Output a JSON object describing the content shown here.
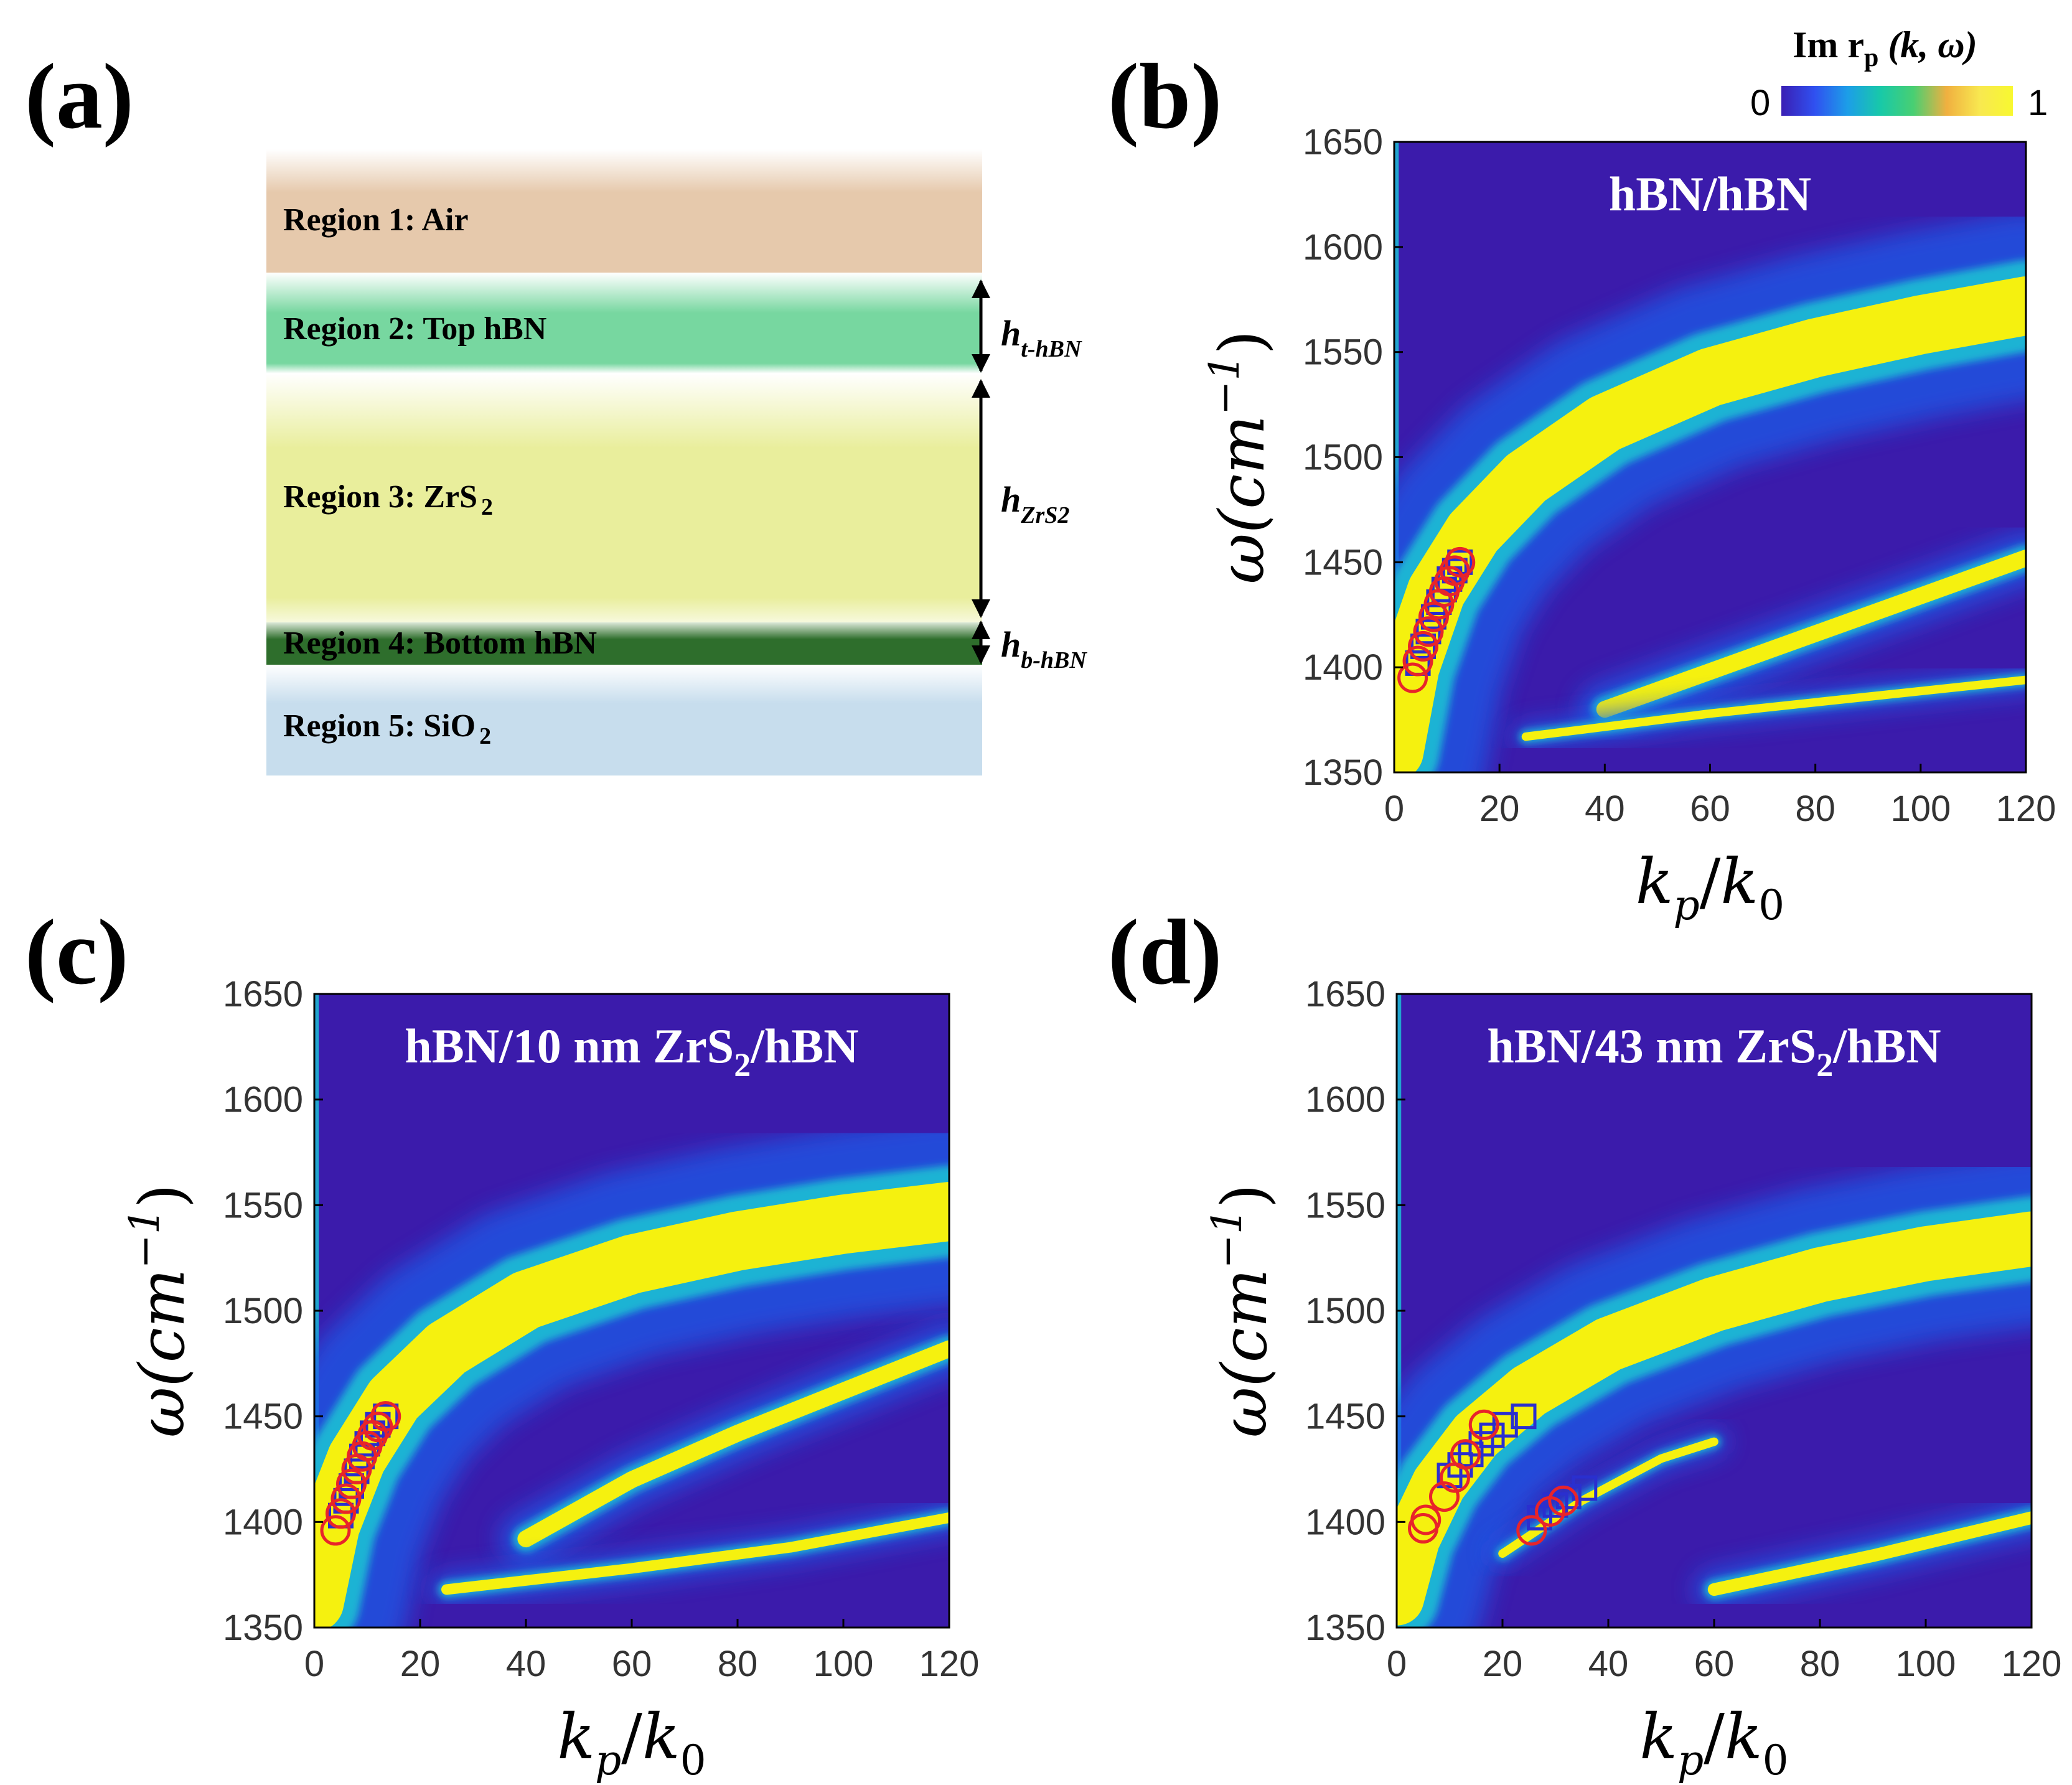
{
  "panel_labels": {
    "a": "(a)",
    "b": "(b)",
    "c": "(c)",
    "d": "(d)"
  },
  "schematic": {
    "layers": [
      {
        "label": "Region 1: Air",
        "color": "#e6c9ac"
      },
      {
        "label": "Region 2: Top  hBN",
        "color": "#77d7a0"
      },
      {
        "label": "Region 3: ZrS",
        "sub": "2",
        "color": "#e9ee9c"
      },
      {
        "label": "Region 4: Bottom  hBN",
        "color": "#2e6e2c"
      },
      {
        "label": "Region 5: SiO",
        "sub": "2",
        "color": "#c7dded"
      }
    ],
    "thickness_labels": [
      {
        "main": "h",
        "sub": "t-hBN"
      },
      {
        "main": "h",
        "sub": "ZrS2"
      },
      {
        "main": "h",
        "sub": "b-hBN"
      }
    ]
  },
  "colorbar": {
    "title": "Im r",
    "title_sub": "p",
    "title_args": " (k, ω)",
    "min_label": "0",
    "max_label": "1",
    "colors": [
      "#3a1fb4",
      "#3050f0",
      "#1c9ee8",
      "#18c9a8",
      "#49cf72",
      "#f0b040",
      "#f8e850",
      "#f8f830"
    ]
  },
  "palette": {
    "background": "#3b1bab",
    "halo": "#1f5ae8",
    "edge": "#1fb3d4",
    "core": "#f5f10f",
    "circle": "#e8242a",
    "square": "#2a2fcf"
  },
  "chart_data": [
    {
      "id": "b",
      "type": "heatmap",
      "title": "hBN/hBN",
      "xlabel": "k",
      "xlabel_sub": "p",
      "xlabel_den": "k",
      "xlabel_den_sub": "0",
      "ylabel": "ω(cm",
      "ylabel_sup": "−1",
      "ylabel_close": ")",
      "xlim": [
        0,
        120
      ],
      "ylim": [
        1350,
        1650
      ],
      "xticks": [
        "0",
        "20",
        "40",
        "60",
        "80",
        "100",
        "120"
      ],
      "yticks": [
        "1350",
        "1400",
        "1450",
        "1500",
        "1550",
        "1600",
        "1650"
      ],
      "bands": [
        {
          "name": "main",
          "x": [
            0,
            3,
            8,
            15,
            25,
            40,
            60,
            80,
            100,
            120
          ],
          "y": [
            1360,
            1400,
            1436,
            1464,
            1490,
            1516,
            1538,
            1552,
            1563,
            1572
          ],
          "width": 28
        },
        {
          "name": "second",
          "x": [
            40,
            60,
            80,
            100,
            120
          ],
          "y": [
            1380,
            1398,
            1416,
            1434,
            1452
          ],
          "width": 8
        },
        {
          "name": "third",
          "x": [
            25,
            60,
            90,
            120
          ],
          "y": [
            1367,
            1378,
            1386,
            1394
          ],
          "width": 4
        }
      ],
      "circles": {
        "x": [
          3.5,
          4.5,
          5.5,
          6.5,
          7.5,
          8.5,
          9.5,
          10.5,
          11.5,
          12.5
        ],
        "y": [
          1395,
          1403,
          1410,
          1417,
          1424,
          1430,
          1436,
          1441,
          1446,
          1450
        ]
      },
      "squares": {
        "x": [
          4.5,
          5.5,
          6.5,
          7.5,
          8.5,
          9.5,
          10.5,
          11.5,
          12.5
        ],
        "y": [
          1402,
          1410,
          1417,
          1424,
          1431,
          1437,
          1442,
          1446,
          1450
        ]
      }
    },
    {
      "id": "c",
      "type": "heatmap",
      "title": "hBN/10 nm ZrS",
      "title_sub": "2",
      "title_tail": "/hBN",
      "xlabel": "k",
      "xlabel_sub": "p",
      "xlabel_den": "k",
      "xlabel_den_sub": "0",
      "ylabel": "ω(cm",
      "ylabel_sup": "−1",
      "ylabel_close": ")",
      "xlim": [
        0,
        120
      ],
      "ylim": [
        1350,
        1650
      ],
      "xticks": [
        "0",
        "20",
        "40",
        "60",
        "80",
        "100",
        "120"
      ],
      "yticks": [
        "1350",
        "1400",
        "1450",
        "1500",
        "1550",
        "1600",
        "1650"
      ],
      "bands": [
        {
          "name": "main",
          "x": [
            0,
            3,
            8,
            15,
            25,
            40,
            60,
            80,
            100,
            120
          ],
          "y": [
            1362,
            1398,
            1430,
            1458,
            1482,
            1505,
            1522,
            1533,
            1541,
            1547
          ],
          "width": 28
        },
        {
          "name": "second",
          "x": [
            40,
            60,
            80,
            100,
            120
          ],
          "y": [
            1392,
            1420,
            1442,
            1462,
            1482
          ],
          "width": 8
        },
        {
          "name": "third",
          "x": [
            25,
            60,
            90,
            120
          ],
          "y": [
            1368,
            1378,
            1388,
            1402
          ],
          "width": 5
        }
      ],
      "circles": {
        "x": [
          4,
          5,
          6,
          7,
          8,
          9,
          10,
          11,
          12,
          13.5
        ],
        "y": [
          1396,
          1404,
          1411,
          1418,
          1425,
          1431,
          1436,
          1441,
          1445,
          1450
        ]
      },
      "squares": {
        "x": [
          5,
          6,
          7,
          8,
          9,
          10,
          11,
          12,
          13.5
        ],
        "y": [
          1403,
          1410,
          1417,
          1424,
          1431,
          1437,
          1442,
          1446,
          1450
        ]
      }
    },
    {
      "id": "d",
      "type": "heatmap",
      "title": "hBN/43 nm ZrS",
      "title_sub": "2",
      "title_tail": "/hBN",
      "xlabel": "k",
      "xlabel_sub": "p",
      "xlabel_den": "k",
      "xlabel_den_sub": "0",
      "ylabel": "ω(cm",
      "ylabel_sup": "−1",
      "ylabel_close": ")",
      "xlim": [
        0,
        120
      ],
      "ylim": [
        1350,
        1650
      ],
      "xticks": [
        "0",
        "20",
        "40",
        "60",
        "80",
        "100",
        "120"
      ],
      "yticks": [
        "1350",
        "1400",
        "1450",
        "1500",
        "1550",
        "1600",
        "1650"
      ],
      "bands": [
        {
          "name": "main",
          "x": [
            0,
            3,
            8,
            15,
            25,
            40,
            60,
            80,
            100,
            120
          ],
          "y": [
            1364,
            1392,
            1418,
            1441,
            1462,
            1484,
            1503,
            1517,
            1527,
            1534
          ],
          "width": 26
        },
        {
          "name": "second",
          "x": [
            20,
            35,
            50,
            60
          ],
          "y": [
            1385,
            1410,
            1430,
            1438
          ],
          "width": 4
        },
        {
          "name": "third",
          "x": [
            60,
            90,
            120
          ],
          "y": [
            1368,
            1384,
            1402
          ],
          "width": 6
        }
      ],
      "circles": {
        "x": [
          5,
          5.5,
          9,
          11,
          13,
          16.5,
          25.5,
          29,
          31.5
        ],
        "y": [
          1397,
          1401,
          1412,
          1421,
          1432,
          1446,
          1396,
          1405,
          1410
        ]
      },
      "squares": {
        "x": [
          10,
          12,
          14,
          16,
          18,
          20.5,
          24,
          27,
          30,
          32.5,
          35.5
        ],
        "y": [
          1422,
          1427,
          1432,
          1437,
          1441,
          1446,
          1450,
          1402,
          1408,
          1412,
          1416
        ]
      }
    }
  ]
}
